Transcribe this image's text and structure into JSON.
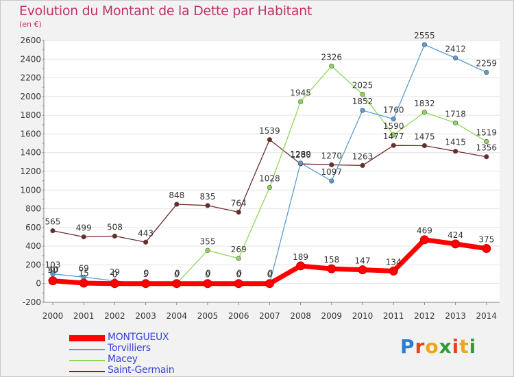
{
  "title": "Evolution du Montant de la Dette par Habitant",
  "unit_label": "(en €)",
  "logo": {
    "text": "Proxiti",
    "colors": [
      "#2b7fd1",
      "#e8411f",
      "#f0a51b",
      "#2e9b3c",
      "#e8411f",
      "#f0a51b",
      "#2e9b3c"
    ]
  },
  "chart_data": {
    "type": "line",
    "title": "Evolution du Montant de la Dette par Habitant",
    "ylabel": "(en €)",
    "xlabel": "",
    "ylim": [
      -200,
      2600
    ],
    "yticks": [
      -200,
      0,
      200,
      400,
      600,
      800,
      1000,
      1200,
      1400,
      1600,
      1800,
      2000,
      2200,
      2400,
      2600
    ],
    "x": [
      "2000",
      "2001",
      "2002",
      "2003",
      "2004",
      "2005",
      "2006",
      "2007",
      "2008",
      "2009",
      "2010",
      "2011",
      "2012",
      "2013",
      "2014"
    ],
    "grid": "horizontal",
    "legend_position": "bottom-left",
    "series": [
      {
        "name": "MONTGUEUX",
        "color": "#ff0000",
        "thick": true,
        "values": [
          30,
          5,
          0,
          0,
          0,
          0,
          0,
          0,
          189,
          158,
          147,
          134,
          469,
          424,
          375
        ],
        "labels": [
          "",
          "",
          "",
          "",
          "",
          "",
          "",
          "",
          "189",
          "158",
          "147",
          "134",
          "469",
          "424",
          "375"
        ]
      },
      {
        "name": "Torvilliers",
        "color": "#5c9bd1",
        "thick": false,
        "values": [
          103,
          69,
          29,
          0,
          0,
          0,
          0,
          0,
          1289,
          1097,
          1852,
          1760,
          2555,
          2412,
          2259
        ],
        "labels": [
          "103",
          "69",
          "29",
          "",
          "",
          "0",
          "0",
          "0",
          "1289",
          "1097",
          "1852",
          "1760",
          "2555",
          "2412",
          "2259"
        ]
      },
      {
        "name": "Macey",
        "color": "#8ed65a",
        "thick": false,
        "values": [
          50,
          15,
          0,
          5,
          0,
          355,
          269,
          1028,
          1945,
          2326,
          2025,
          1590,
          1832,
          1718,
          1519
        ],
        "labels": [
          "50",
          "15",
          "0",
          "5",
          "0",
          "355",
          "269",
          "1028",
          "1945",
          "2326",
          "2025",
          "1590",
          "1832",
          "1718",
          "1519"
        ]
      },
      {
        "name": "Saint-Germain",
        "color": "#6e2a2a",
        "thick": false,
        "values": [
          565,
          499,
          508,
          443,
          848,
          835,
          764,
          1539,
          1280,
          1270,
          1263,
          1477,
          1475,
          1415,
          1356
        ],
        "labels": [
          "565",
          "499",
          "508",
          "443",
          "848",
          "835",
          "764",
          "1539",
          "1280",
          "1270",
          "1263",
          "1477",
          "1475",
          "1415",
          "1356"
        ]
      }
    ],
    "extra_labels": [
      "40",
      "0",
      "0",
      "0",
      "0",
      "0"
    ]
  }
}
